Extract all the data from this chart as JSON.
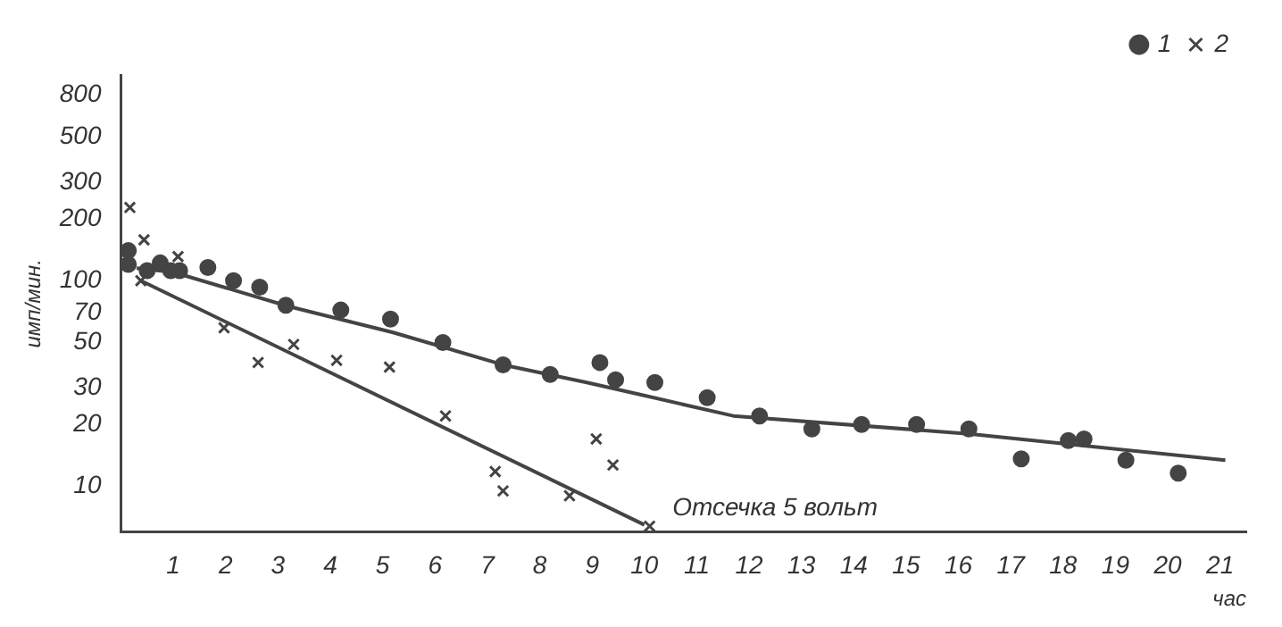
{
  "chart_data": {
    "type": "scatter",
    "xlabel": "час",
    "ylabel": "имп/мин.",
    "xlim": [
      0,
      21.5
    ],
    "xticks": [
      1,
      2,
      3,
      4,
      5,
      6,
      7,
      8,
      9,
      10,
      11,
      12,
      13,
      14,
      15,
      16,
      17,
      18,
      19,
      20,
      21
    ],
    "ylim": [
      6,
      1000
    ],
    "yticks": [
      10,
      20,
      30,
      50,
      70,
      100,
      200,
      300,
      500,
      800
    ],
    "log": true,
    "grid": false,
    "legend": "top right",
    "series": [
      {
        "name": "1",
        "marker": "circle",
        "color": "#444444",
        "x": [
          0.14,
          0.14,
          0.5,
          0.75,
          0.95,
          1.12,
          1.66,
          2.15,
          2.65,
          3.15,
          4.2,
          5.15,
          6.15,
          7.3,
          8.2,
          9.15,
          9.45,
          10.2,
          11.2,
          12.2,
          13.2,
          14.15,
          15.2,
          16.2,
          17.2,
          18.1,
          18.4,
          19.2,
          20.2
        ],
        "values": [
          120,
          140,
          112,
          122,
          112,
          112,
          116,
          100,
          93,
          76,
          72,
          65,
          50,
          39,
          35,
          40,
          33,
          32,
          27,
          22,
          19,
          20,
          20,
          19,
          13.6,
          16.7,
          17,
          13.4,
          11.6
        ]
      },
      {
        "name": "2",
        "marker": "cross",
        "color": "#444444",
        "x": [
          0.17,
          0.44,
          0.38,
          1.09,
          1.97,
          2.62,
          3.3,
          4.12,
          5.13,
          6.2,
          7.15,
          7.3,
          8.57,
          9.08,
          9.4,
          10.1
        ],
        "values": [
          227,
          158,
          100,
          131,
          59,
          40,
          49,
          41,
          38,
          22,
          11.8,
          9.5,
          9,
          17,
          12.7,
          6.4
        ]
      },
      {
        "type": "line",
        "marker": "none",
        "color": "#444444",
        "x": [
          0.3,
          1,
          3.2,
          5.2,
          7.3,
          8.9,
          9.9,
          11.7,
          16.2,
          21.1
        ],
        "values": [
          115,
          110,
          75,
          56,
          39,
          32,
          28,
          22,
          18,
          13.4
        ]
      },
      {
        "type": "line",
        "marker": "none",
        "color": "#444444",
        "x": [
          0.38,
          10.0
        ],
        "values": [
          100,
          6.5
        ]
      }
    ],
    "annotations": [
      "Отсечка 5 вольт"
    ]
  }
}
